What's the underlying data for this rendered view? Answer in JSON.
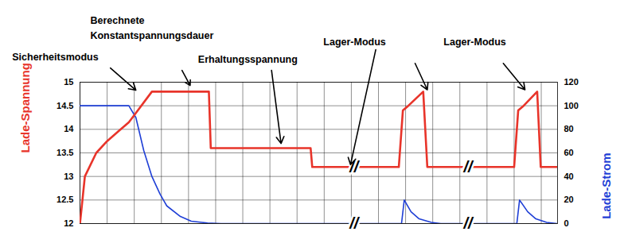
{
  "chart_data": {
    "type": "line",
    "xlim": [
      0,
      17.6
    ],
    "xticks": [
      0,
      1,
      2,
      3,
      4,
      5,
      6,
      7,
      8,
      9,
      10,
      11,
      12,
      13,
      14,
      15,
      16,
      17
    ],
    "ylim": [
      12,
      15
    ],
    "yticks": [
      12,
      12.5,
      13,
      13.5,
      14,
      14.5,
      15
    ],
    "y2lim": [
      0,
      120
    ],
    "y2ticks": [
      0,
      20,
      40,
      60,
      80,
      100,
      120
    ],
    "ylabel": "Lade-Spannung",
    "y2label": "Lade-Strom",
    "grid": true,
    "tick_labels": "y",
    "series": [
      {
        "name": "Lade-Spannung",
        "color": "#e8342a",
        "axis": "y",
        "x": [
          0,
          0.18,
          0.6,
          1.0,
          1.4,
          1.8,
          2.0,
          2.65,
          4.75,
          4.82,
          8.5,
          8.56,
          11.75,
          11.9,
          12.1,
          12.65,
          12.8,
          16.0,
          16.15,
          16.35,
          16.85,
          16.98,
          17.6
        ],
        "values": [
          12,
          13,
          13.5,
          13.75,
          13.95,
          14.15,
          14.3,
          14.8,
          14.8,
          13.6,
          13.6,
          13.2,
          13.2,
          14.4,
          14.5,
          14.8,
          13.2,
          13.2,
          14.4,
          14.5,
          14.8,
          13.2,
          13.2
        ]
      },
      {
        "name": "Lade-Strom",
        "color": "#1f3fd6",
        "axis": "y2",
        "x": [
          0,
          1.8,
          2.06,
          2.35,
          2.65,
          2.95,
          3.2,
          3.7,
          4.1,
          4.7,
          5.2,
          11.85,
          11.95,
          12.2,
          12.5,
          12.95,
          13.3,
          16.1,
          16.2,
          16.5,
          16.8,
          17.2,
          17.6
        ],
        "values": [
          100,
          100,
          90,
          62,
          40,
          25,
          15,
          6,
          2,
          0.5,
          0,
          0,
          20,
          10,
          4,
          1,
          0,
          0,
          20,
          10,
          4,
          1,
          0
        ]
      }
    ],
    "annotations": [
      {
        "text": "Sicherheitsmodus",
        "x": -2.5,
        "y": 15.56,
        "arrows": [
          {
            "x1": 1.12,
            "y1": 15.3,
            "x2": 2.06,
            "y2": 14.83
          }
        ]
      },
      {
        "text": "Berechnete\nKonstantspannungsdauer",
        "x": 0.38,
        "y": 16.18,
        "arrows": [
          {
            "x1": 3.76,
            "y1": 15.25,
            "x2": 4.06,
            "y2": 14.93
          }
        ]
      },
      {
        "text": "Erhaltungsspannung",
        "x": 4.35,
        "y": 15.52,
        "arrows": [
          {
            "x1": 7.06,
            "y1": 15.25,
            "x2": 7.41,
            "y2": 13.7
          }
        ]
      },
      {
        "text": "Lager-Modus",
        "x": 8.97,
        "y": 15.89,
        "arrows": [
          {
            "x1": 10.9,
            "y1": 15.69,
            "x2": 9.97,
            "y2": 13.25
          },
          {
            "x1": 12.35,
            "y1": 15.4,
            "x2": 12.8,
            "y2": 14.84
          }
        ]
      },
      {
        "text": "Lager-Modus",
        "x": 13.4,
        "y": 15.89,
        "arrows": [
          {
            "x1": 15.6,
            "y1": 15.4,
            "x2": 16.4,
            "y2": 14.84
          }
        ]
      }
    ],
    "breaks": [
      {
        "text": "//",
        "x": 10.1,
        "y": 13.2
      },
      {
        "text": "//",
        "x": 10.1,
        "y": 12
      },
      {
        "text": "//",
        "x": 14.3,
        "y": 13.2
      },
      {
        "text": "//",
        "x": 14.3,
        "y": 12
      }
    ]
  }
}
